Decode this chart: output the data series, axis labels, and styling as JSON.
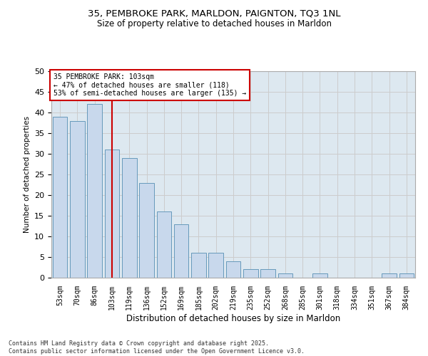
{
  "title1": "35, PEMBROKE PARK, MARLDON, PAIGNTON, TQ3 1NL",
  "title2": "Size of property relative to detached houses in Marldon",
  "xlabel": "Distribution of detached houses by size in Marldon",
  "ylabel": "Number of detached properties",
  "categories": [
    "53sqm",
    "70sqm",
    "86sqm",
    "103sqm",
    "119sqm",
    "136sqm",
    "152sqm",
    "169sqm",
    "185sqm",
    "202sqm",
    "219sqm",
    "235sqm",
    "252sqm",
    "268sqm",
    "285sqm",
    "301sqm",
    "318sqm",
    "334sqm",
    "351sqm",
    "367sqm",
    "384sqm"
  ],
  "values": [
    39,
    38,
    42,
    31,
    29,
    23,
    16,
    13,
    6,
    6,
    4,
    2,
    2,
    1,
    0,
    1,
    0,
    0,
    0,
    1,
    1
  ],
  "bar_color": "#c8d8ec",
  "bar_edge_color": "#6699bb",
  "vline_color": "#cc0000",
  "vline_index": 3,
  "annotation_box_color": "#ffffff",
  "annotation_box_edge_color": "#cc0000",
  "property_label": "35 PEMBROKE PARK: 103sqm",
  "annotation_line1": "← 47% of detached houses are smaller (118)",
  "annotation_line2": "53% of semi-detached houses are larger (135) →",
  "ylim": [
    0,
    50
  ],
  "yticks": [
    0,
    5,
    10,
    15,
    20,
    25,
    30,
    35,
    40,
    45,
    50
  ],
  "grid_color": "#cccccc",
  "bg_color": "#dde8f0",
  "fig_color": "#ffffff",
  "footnote1": "Contains HM Land Registry data © Crown copyright and database right 2025.",
  "footnote2": "Contains public sector information licensed under the Open Government Licence v3.0."
}
